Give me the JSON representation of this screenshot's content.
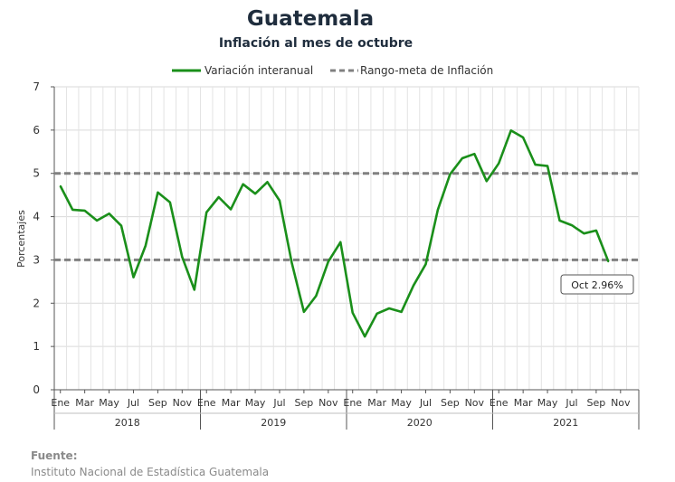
{
  "chart_data": {
    "type": "line",
    "title": "Guatemala",
    "subtitle": "Inflación al mes de octubre",
    "ylabel": "Porcentajes",
    "ylim": [
      0,
      7
    ],
    "yticks": [
      0,
      1,
      2,
      3,
      4,
      5,
      6,
      7
    ],
    "grid": true,
    "legend_position": "top",
    "month_tick_labels": [
      "Ene",
      "Mar",
      "May",
      "Jul",
      "Sep",
      "Nov"
    ],
    "years": [
      "2018",
      "2019",
      "2020",
      "2021"
    ],
    "x": [
      "2018-01",
      "2018-02",
      "2018-03",
      "2018-04",
      "2018-05",
      "2018-06",
      "2018-07",
      "2018-08",
      "2018-09",
      "2018-10",
      "2018-11",
      "2018-12",
      "2019-01",
      "2019-02",
      "2019-03",
      "2019-04",
      "2019-05",
      "2019-06",
      "2019-07",
      "2019-08",
      "2019-09",
      "2019-10",
      "2019-11",
      "2019-12",
      "2020-01",
      "2020-02",
      "2020-03",
      "2020-04",
      "2020-05",
      "2020-06",
      "2020-07",
      "2020-08",
      "2020-09",
      "2020-10",
      "2020-11",
      "2020-12",
      "2021-01",
      "2021-02",
      "2021-03",
      "2021-04",
      "2021-05",
      "2021-06",
      "2021-07",
      "2021-08",
      "2021-09",
      "2021-10"
    ],
    "series": [
      {
        "name": "Variación interanual",
        "color": "#1a8f1a",
        "values": [
          4.71,
          4.16,
          4.14,
          3.91,
          4.07,
          3.79,
          2.6,
          3.33,
          4.56,
          4.33,
          3.07,
          2.31,
          4.1,
          4.45,
          4.17,
          4.75,
          4.53,
          4.8,
          4.37,
          2.94,
          1.8,
          2.17,
          2.96,
          3.41,
          1.78,
          1.23,
          1.76,
          1.88,
          1.8,
          2.41,
          2.9,
          4.16,
          4.98,
          5.35,
          5.45,
          4.82,
          5.23,
          5.99,
          5.83,
          5.2,
          5.17,
          3.91,
          3.8,
          3.61,
          3.68,
          2.96
        ]
      }
    ],
    "reference_lines": [
      {
        "name": "Rango-meta de Inflación",
        "values": [
          3,
          5
        ],
        "color": "#808080",
        "style": "dashed"
      }
    ],
    "annotation": {
      "text": "Oct 2.96%",
      "x": "2021-10",
      "y": 2.96
    }
  },
  "source": {
    "label": "Fuente:",
    "text": "Instituto Nacional de Estadística Guatemala"
  }
}
